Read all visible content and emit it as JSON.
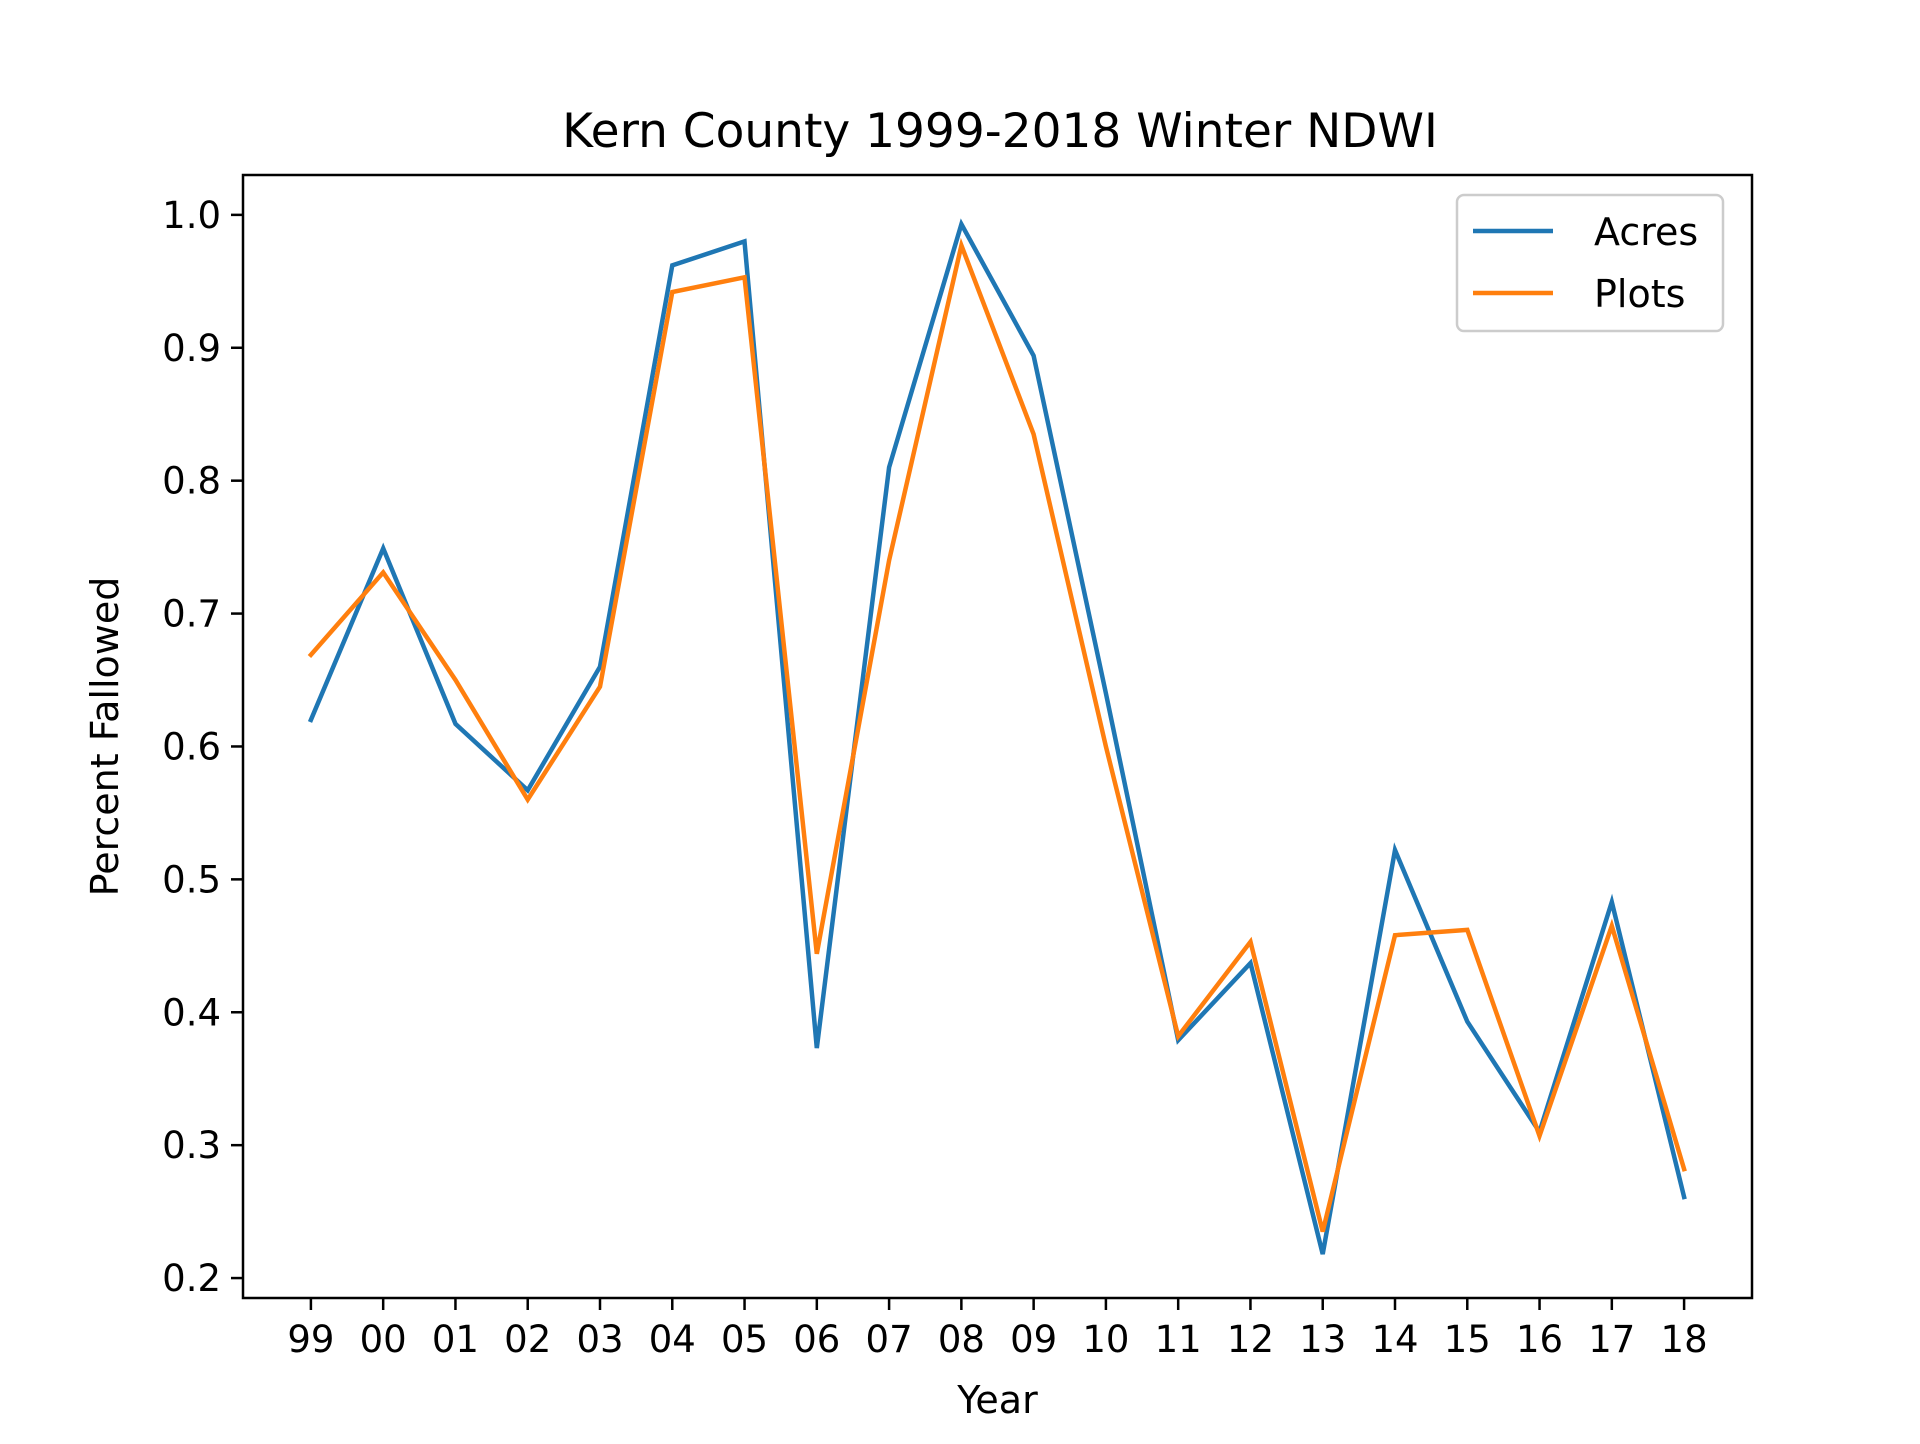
{
  "chart_data": {
    "type": "line",
    "title": "Kern County 1999-2018 Winter NDWI",
    "xlabel": "Year",
    "ylabel": "Percent Fallowed",
    "categories": [
      "99",
      "00",
      "01",
      "02",
      "03",
      "04",
      "05",
      "06",
      "07",
      "08",
      "09",
      "10",
      "11",
      "12",
      "13",
      "14",
      "15",
      "16",
      "17",
      "18"
    ],
    "ylim": [
      0.185,
      1.03
    ],
    "yticks": [
      "0.2",
      "0.3",
      "0.4",
      "0.5",
      "0.6",
      "0.7",
      "0.8",
      "0.9",
      "1.0"
    ],
    "grid": false,
    "legend": "top-right",
    "series": [
      {
        "name": "Acres",
        "color": "#1f77b4",
        "values": [
          0.62,
          0.749,
          0.617,
          0.567,
          0.66,
          0.962,
          0.98,
          0.373,
          0.81,
          0.993,
          0.894,
          0.64,
          0.379,
          0.437,
          0.218,
          0.522,
          0.393,
          0.31,
          0.483,
          0.261
        ]
      },
      {
        "name": "Plots",
        "color": "#ff7f0e",
        "values": [
          0.669,
          0.731,
          0.65,
          0.56,
          0.645,
          0.942,
          0.953,
          0.444,
          0.74,
          0.977,
          0.835,
          0.6,
          0.382,
          0.453,
          0.235,
          0.458,
          0.462,
          0.307,
          0.465,
          0.282
        ]
      }
    ]
  }
}
